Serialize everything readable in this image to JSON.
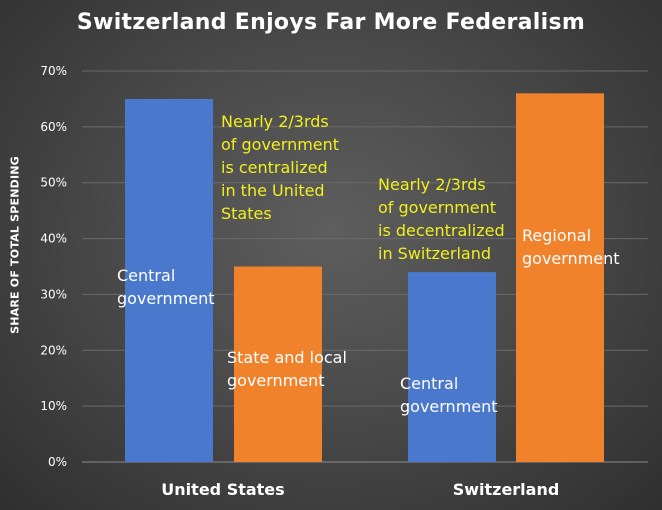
{
  "chart_data": {
    "type": "bar",
    "title": "Switzerland Enjoys Far More Federalism",
    "ylabel": "SHARE OF TOTAL SPENDING",
    "xlabel": "",
    "ylim": [
      0,
      70
    ],
    "yticks": [
      "0%",
      "10%",
      "20%",
      "30%",
      "40%",
      "50%",
      "60%",
      "70%"
    ],
    "grid": true,
    "categories": [
      "United States",
      "Switzerland"
    ],
    "bars": [
      {
        "category": "United States",
        "label": "Central government",
        "value": 65,
        "color": "#4a78cc"
      },
      {
        "category": "United States",
        "label": "State and local government",
        "value": 35,
        "color": "#f0822c"
      },
      {
        "category": "Switzerland",
        "label": "Central government",
        "value": 34,
        "color": "#4a78cc"
      },
      {
        "category": "Switzerland",
        "label": "Regional government",
        "value": 66,
        "color": "#f0822c"
      }
    ],
    "annotations": {
      "us_central": "Central\ngovernment",
      "us_state": "State and local\ngovernment",
      "ch_central": "Central\ngovernment",
      "ch_regional": "Regional\ngovernment",
      "us_note": "Nearly 2/3rds\nof government\nis centralized\nin the United\nStates",
      "ch_note": "Nearly 2/3rds\nof government\nis decentralized\nin Switzerland"
    }
  },
  "colors": {
    "central": "#4a78cc",
    "regional": "#f0822c",
    "highlight": "#f2ef1e"
  }
}
